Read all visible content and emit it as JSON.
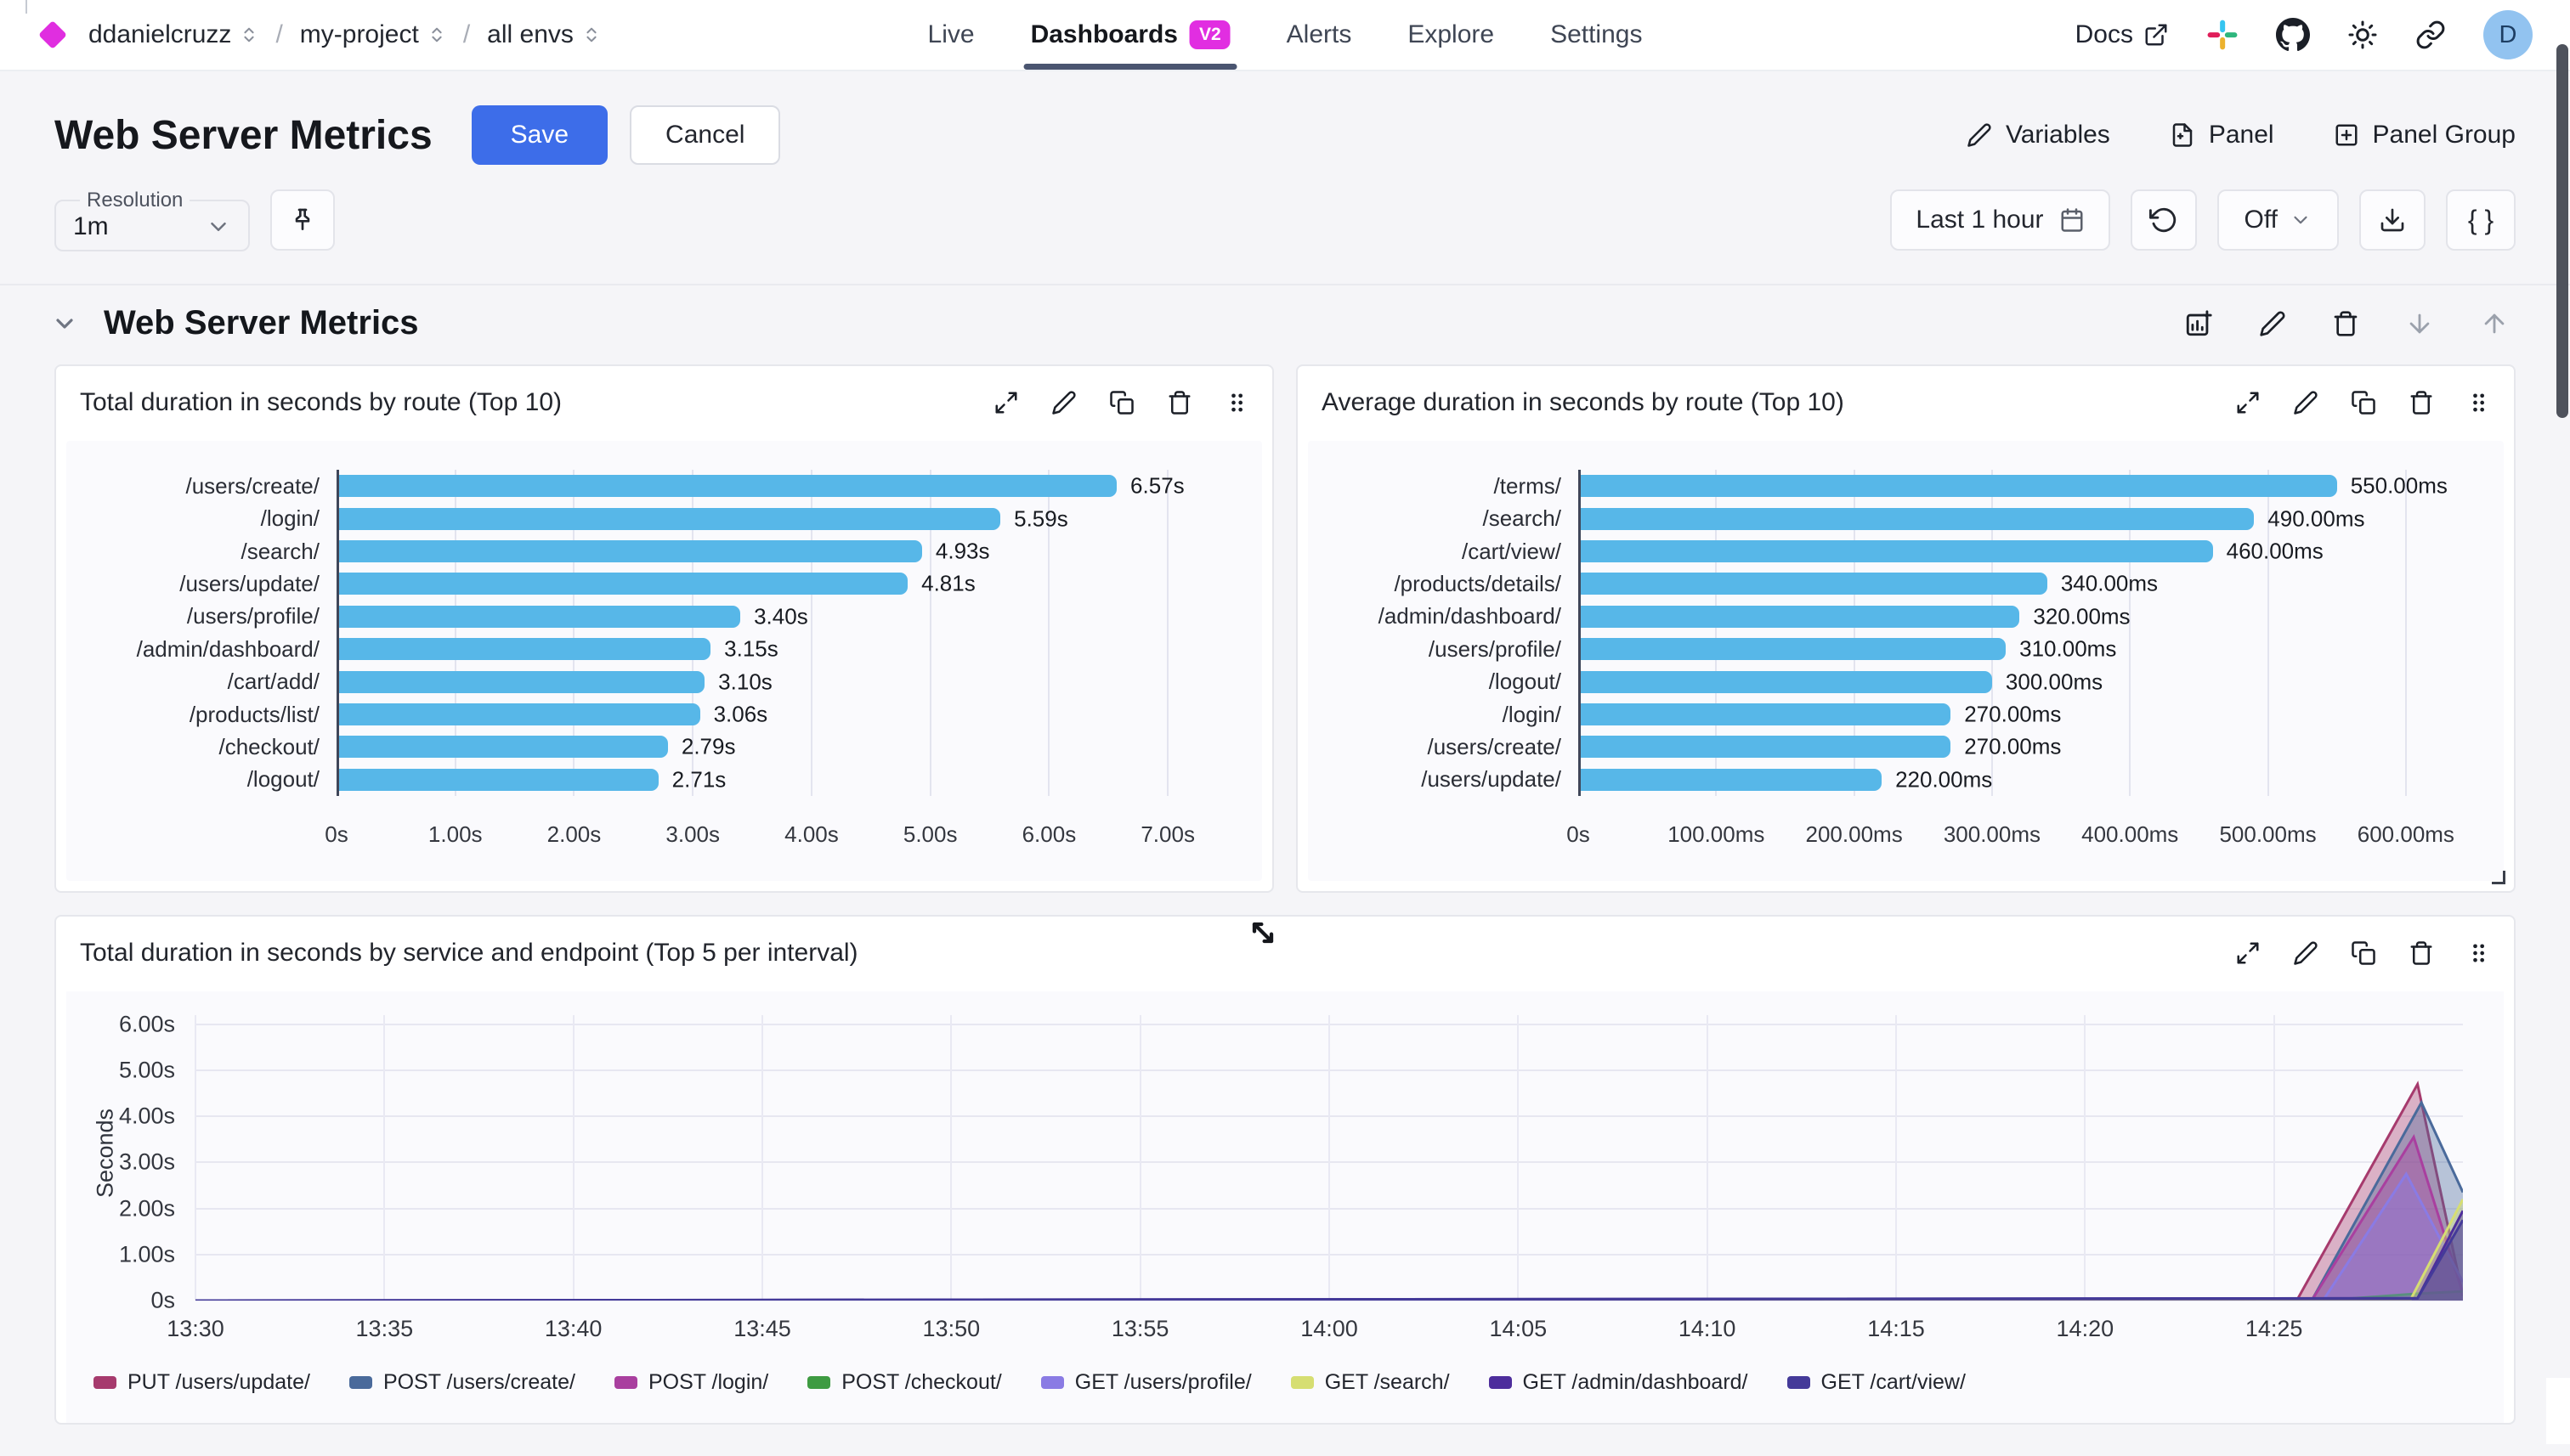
{
  "nav": {
    "brand_color": "#e02ee0",
    "breadcrumbs": [
      {
        "label": "ddanielcruzz"
      },
      {
        "label": "my-project"
      },
      {
        "label": "all envs"
      }
    ],
    "tabs": [
      {
        "label": "Live",
        "active": false,
        "badge": null
      },
      {
        "label": "Dashboards",
        "active": true,
        "badge": "V2"
      },
      {
        "label": "Alerts",
        "active": false,
        "badge": null
      },
      {
        "label": "Explore",
        "active": false,
        "badge": null
      },
      {
        "label": "Settings",
        "active": false,
        "badge": null
      }
    ],
    "docs_label": "Docs",
    "avatar_initial": "D"
  },
  "header": {
    "title": "Web Server Metrics",
    "save_label": "Save",
    "cancel_label": "Cancel",
    "variables_label": "Variables",
    "panel_label": "Panel",
    "panel_group_label": "Panel Group"
  },
  "controls": {
    "resolution_label": "Resolution",
    "resolution_value": "1m",
    "time_range_label": "Last 1 hour",
    "refresh_value": "Off",
    "braces_label": "{ }"
  },
  "section": {
    "title": "Web Server Metrics"
  },
  "colors": {
    "accent_magenta": "#e12ee1",
    "save_blue": "#3d6de9",
    "bar_blue": "#57b7e8",
    "active_tab_underline": "#4a5570"
  },
  "chart_data": [
    {
      "type": "bar",
      "orientation": "horizontal",
      "title": "Total duration in seconds by route (Top 10)",
      "categories": [
        "/users/create/",
        "/login/",
        "/search/",
        "/users/update/",
        "/users/profile/",
        "/admin/dashboard/",
        "/cart/add/",
        "/products/list/",
        "/checkout/",
        "/logout/"
      ],
      "values": [
        6.57,
        5.59,
        4.93,
        4.81,
        3.4,
        3.15,
        3.1,
        3.06,
        2.79,
        2.71
      ],
      "value_labels": [
        "6.57s",
        "5.59s",
        "4.93s",
        "4.81s",
        "3.40s",
        "3.15s",
        "3.10s",
        "3.06s",
        "2.79s",
        "2.71s"
      ],
      "x_ticks": [
        "0s",
        "1.00s",
        "2.00s",
        "3.00s",
        "4.00s",
        "5.00s",
        "6.00s",
        "7.00s"
      ],
      "x_tick_values": [
        0,
        1,
        2,
        3,
        4,
        5,
        6,
        7
      ],
      "xlim": [
        0,
        7.55
      ],
      "bar_color": "#57b7e8",
      "grid": true
    },
    {
      "type": "bar",
      "orientation": "horizontal",
      "title": "Average duration in seconds by route (Top 10)",
      "categories": [
        "/terms/",
        "/search/",
        "/cart/view/",
        "/products/details/",
        "/admin/dashboard/",
        "/users/profile/",
        "/logout/",
        "/login/",
        "/users/create/",
        "/users/update/"
      ],
      "values": [
        550,
        490,
        460,
        340,
        320,
        310,
        300,
        270,
        270,
        220
      ],
      "value_labels": [
        "550.00ms",
        "490.00ms",
        "460.00ms",
        "340.00ms",
        "320.00ms",
        "310.00ms",
        "300.00ms",
        "270.00ms",
        "270.00ms",
        "220.00ms"
      ],
      "x_ticks": [
        "0s",
        "100.00ms",
        "200.00ms",
        "300.00ms",
        "400.00ms",
        "500.00ms",
        "600.00ms"
      ],
      "x_tick_values": [
        0,
        100,
        200,
        300,
        400,
        500,
        600
      ],
      "xlim": [
        0,
        650
      ],
      "bar_color": "#57b7e8",
      "grid": true
    },
    {
      "type": "area",
      "title": "Total duration in seconds by service and endpoint (Top 5 per interval)",
      "ylabel": "Seconds",
      "y_ticks": [
        "0s",
        "1.00s",
        "2.00s",
        "3.00s",
        "4.00s",
        "5.00s",
        "6.00s"
      ],
      "y_tick_values": [
        0,
        1,
        2,
        3,
        4,
        5,
        6
      ],
      "ylim": [
        0,
        6.2
      ],
      "x_ticks": [
        "13:30",
        "13:35",
        "13:40",
        "13:45",
        "13:50",
        "13:55",
        "14:00",
        "14:05",
        "14:10",
        "14:15",
        "14:20",
        "14:25"
      ],
      "x_tick_minutes": [
        0,
        5,
        10,
        15,
        20,
        25,
        30,
        35,
        40,
        45,
        50,
        55
      ],
      "xlim": [
        0,
        60
      ],
      "grid": true,
      "legend_position": "bottom",
      "series": [
        {
          "name": "PUT /users/update/",
          "color": "#a63a6d",
          "points": [
            [
              0,
              0
            ],
            [
              55.6,
              0
            ],
            [
              58.8,
              4.7
            ],
            [
              60,
              0.1
            ]
          ]
        },
        {
          "name": "POST /users/create/",
          "color": "#4a6a9b",
          "points": [
            [
              0,
              0
            ],
            [
              56.0,
              0
            ],
            [
              58.9,
              4.3
            ],
            [
              60,
              2.35
            ]
          ]
        },
        {
          "name": "POST /login/",
          "color": "#a93f9f",
          "points": [
            [
              0,
              0
            ],
            [
              56.0,
              0
            ],
            [
              58.7,
              3.55
            ],
            [
              60,
              0.15
            ]
          ]
        },
        {
          "name": "POST /checkout/",
          "color": "#3e9b42",
          "points": [
            [
              0,
              0
            ],
            [
              56.3,
              0
            ],
            [
              58.8,
              0.15
            ],
            [
              60,
              0.2
            ]
          ]
        },
        {
          "name": "GET /users/profile/",
          "color": "#8a7be4",
          "points": [
            [
              0,
              0
            ],
            [
              56.3,
              0
            ],
            [
              58.5,
              2.75
            ],
            [
              60,
              0.4
            ]
          ]
        },
        {
          "name": "GET /search/",
          "color": "#d6de72",
          "points": [
            [
              0,
              0
            ],
            [
              58.6,
              0
            ],
            [
              60,
              2.2
            ]
          ]
        },
        {
          "name": "GET /admin/dashboard/",
          "color": "#4d2d9c",
          "points": [
            [
              0,
              0
            ],
            [
              58.8,
              0.05
            ],
            [
              60,
              1.95
            ]
          ]
        },
        {
          "name": "GET /cart/view/",
          "color": "#443a99",
          "points": [
            [
              0,
              0
            ],
            [
              58.8,
              0.05
            ],
            [
              60,
              1.75
            ]
          ]
        }
      ]
    }
  ]
}
